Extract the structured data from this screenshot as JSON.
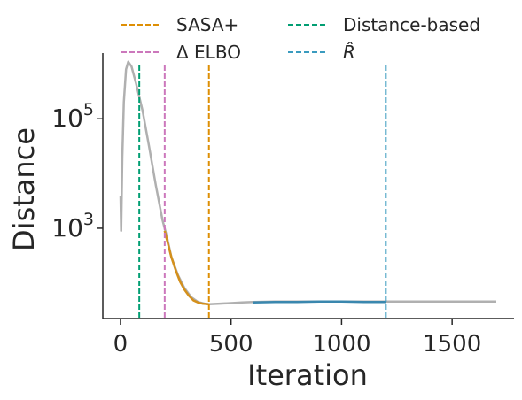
{
  "chart_data": {
    "type": "line",
    "title": "",
    "xlabel": "Iteration",
    "ylabel": "Distance",
    "xlim": [
      -80,
      1780
    ],
    "ylim_log10": [
      1.35,
      6.2
    ],
    "yscale": "log",
    "x_ticks": [
      0,
      500,
      1000,
      1500
    ],
    "x_tick_labels": [
      "0",
      "500",
      "1000",
      "1500"
    ],
    "y_ticks_log10": [
      3,
      5
    ],
    "y_tick_bases": [
      "10",
      "10"
    ],
    "y_tick_exponents": [
      "3",
      "5"
    ],
    "grid": false,
    "legend_position": "top",
    "series": [
      {
        "color": "#b0b0b0",
        "points": [
          [
            0,
            3900
          ],
          [
            3,
            900
          ],
          [
            8,
            20000
          ],
          [
            15,
            200000
          ],
          [
            25,
            800000
          ],
          [
            35,
            1100000
          ],
          [
            50,
            900000
          ],
          [
            70,
            450000
          ],
          [
            100,
            140000
          ],
          [
            130,
            30000
          ],
          [
            160,
            6000
          ],
          [
            190,
            1400
          ],
          [
            210,
            700
          ],
          [
            230,
            300
          ],
          [
            260,
            140
          ],
          [
            290,
            80
          ],
          [
            320,
            55
          ],
          [
            350,
            45
          ],
          [
            380,
            42
          ],
          [
            400,
            41
          ],
          [
            450,
            42
          ],
          [
            500,
            43
          ],
          [
            550,
            44
          ],
          [
            600,
            45
          ],
          [
            700,
            46
          ],
          [
            800,
            46
          ],
          [
            900,
            46
          ],
          [
            1000,
            46
          ],
          [
            1100,
            46
          ],
          [
            1200,
            46
          ],
          [
            1300,
            46
          ],
          [
            1400,
            46
          ],
          [
            1500,
            46
          ],
          [
            1600,
            46
          ],
          [
            1700,
            46
          ]
        ]
      },
      {
        "color": "#d4901c",
        "points": [
          [
            200,
            900
          ],
          [
            210,
            620
          ],
          [
            230,
            300
          ],
          [
            250,
            170
          ],
          [
            270,
            105
          ],
          [
            290,
            75
          ],
          [
            310,
            58
          ],
          [
            330,
            48
          ],
          [
            350,
            44
          ],
          [
            370,
            42
          ],
          [
            400,
            41
          ]
        ]
      },
      {
        "color": "#3a87ae",
        "points": [
          [
            600,
            44
          ],
          [
            700,
            45
          ],
          [
            800,
            45
          ],
          [
            900,
            46
          ],
          [
            1000,
            46
          ],
          [
            1100,
            45
          ],
          [
            1200,
            45
          ]
        ]
      }
    ],
    "vlines": [
      {
        "label": "SASA+",
        "x": 400,
        "color": "#de8f05"
      },
      {
        "label": "Δ ELBO",
        "x": 200,
        "color": "#cc78bc"
      },
      {
        "label": "Distance-based",
        "x": 85,
        "color": "#029e73"
      },
      {
        "label": "R̂",
        "x": 1200,
        "color": "#3a9bbf"
      }
    ]
  }
}
